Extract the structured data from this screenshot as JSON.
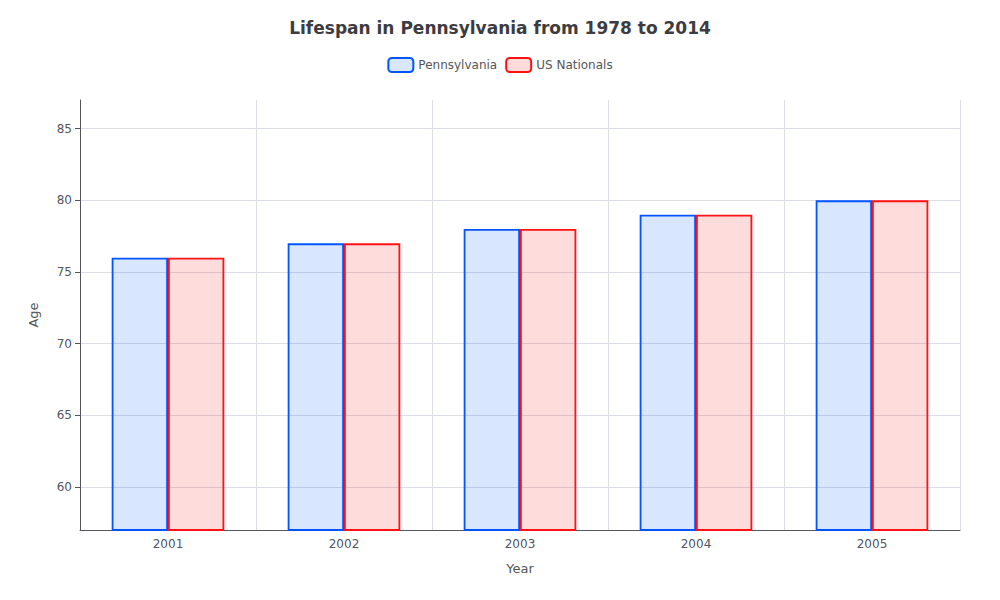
{
  "chart_data": {
    "type": "bar",
    "title": "Lifespan in Pennsylvania from 1978 to 2014",
    "x_label": "Year",
    "y_label": "Age",
    "categories": [
      "2001",
      "2002",
      "2003",
      "2004",
      "2005"
    ],
    "series": [
      {
        "name": "Pennsylvania",
        "color": "#0055ff",
        "values": [
          76,
          77,
          78,
          79,
          80
        ]
      },
      {
        "name": "US Nationals",
        "color": "#ff1111",
        "values": [
          76,
          77,
          78,
          79,
          80
        ]
      }
    ],
    "ylim": [
      57,
      87
    ],
    "yticks": [
      60,
      65,
      70,
      75,
      80,
      85
    ],
    "grid": true,
    "legend": "top"
  }
}
